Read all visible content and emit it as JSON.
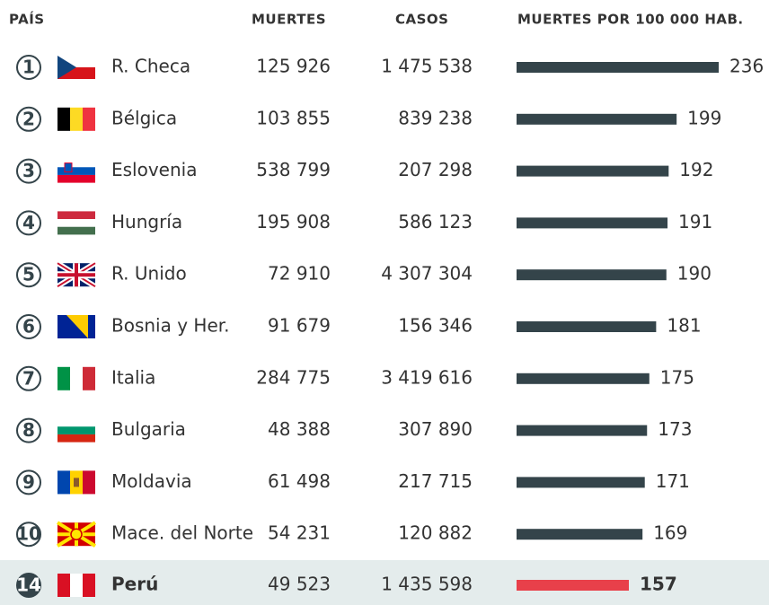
{
  "chart_data": {
    "type": "table-bar",
    "columns": [
      "PAÍS",
      "MUERTES",
      "CASOS",
      "MUERTES POR 100 000 HAB."
    ],
    "ranks": [
      1,
      2,
      3,
      4,
      5,
      6,
      7,
      8,
      9,
      10,
      14
    ],
    "categories": [
      "R. Checa",
      "Bélgica",
      "Eslovenia",
      "Hungría",
      "R. Unido",
      "Bosnia y Her.",
      "Italia",
      "Bulgaria",
      "Moldavia",
      "Mace. del Norte",
      "Perú"
    ],
    "deaths": [
      "125 926",
      "103 855",
      "538 799",
      "195 908",
      "72 910",
      "91 679",
      "284 775",
      "48 388",
      "61 498",
      "54 231",
      "49 523"
    ],
    "cases": [
      "1 475 538",
      "839 238",
      "207 298",
      "586 123",
      "4 307 304",
      "156 346",
      "3 419 616",
      "307 890",
      "217 715",
      "120 882",
      "1 435 598"
    ],
    "values": [
      236,
      199,
      192,
      191,
      190,
      181,
      175,
      173,
      171,
      169,
      157
    ],
    "colors": [
      "#34444a",
      "#34444a",
      "#34444a",
      "#34444a",
      "#34444a",
      "#34444a",
      "#34444a",
      "#34444a",
      "#34444a",
      "#34444a",
      "#e8404a"
    ]
  }
}
